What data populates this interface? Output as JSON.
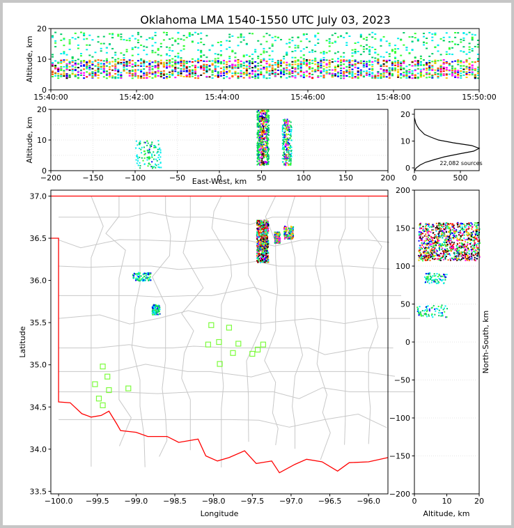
{
  "title": "Oklahoma LMA 1540-1550 UTC July 03, 2023",
  "colors": {
    "frame": "#c6c6c6",
    "state_border": "#ff0000",
    "county_lines": "#c8c8c8",
    "stations": "#7cfc3c",
    "density_scale": [
      "#ffffff",
      "#ccffff",
      "#00eeee",
      "#00cc66",
      "#33ff33",
      "#0000ff",
      "#ff00ff",
      "#ffcc00",
      "#ff6600",
      "#ff0000",
      "#660000",
      "#000000"
    ]
  },
  "panels": {
    "time_height": {
      "ylabel": "Altitude, km",
      "ylim": [
        0,
        20
      ],
      "yticks": [
        "0",
        "10",
        "20"
      ],
      "xticks": [
        "15:40:00",
        "15:42:00",
        "15:44:00",
        "15:46:00",
        "15:48:00",
        "15:50:00"
      ]
    },
    "ew_height": {
      "ylabel": "Altitude, km",
      "xlabel": "East-West, km",
      "xlim": [
        -200,
        200
      ],
      "ylim": [
        0,
        20
      ],
      "xticks": [
        "−200",
        "−150",
        "−100",
        "−50",
        "0",
        "50",
        "100",
        "150",
        "200"
      ],
      "yticks": [
        "0",
        "10",
        "20"
      ]
    },
    "histogram": {
      "xticks": [
        "0",
        "500"
      ],
      "yticks": [
        "0",
        "10",
        "20"
      ],
      "sources_label": "22,082 sources"
    },
    "plan_view": {
      "xlabel": "Longitude",
      "ylabel": "Latitude",
      "xlim": [
        -100.1,
        -95.75
      ],
      "ylim": [
        33.47,
        37.07
      ],
      "xticks": [
        "−100.0",
        "−99.5",
        "−99.0",
        "−98.5",
        "−98.0",
        "−97.5",
        "−97.0",
        "−96.5",
        "−96.0"
      ],
      "yticks": [
        "33.5",
        "34.0",
        "34.5",
        "35.0",
        "35.5",
        "36.0",
        "36.5",
        "37.0"
      ]
    },
    "ns_height": {
      "xlabel": "Altitude, km",
      "ylabel": "North-South, km",
      "xlim": [
        0,
        20
      ],
      "ylim": [
        -200,
        200
      ],
      "xticks": [
        "0",
        "10",
        "20"
      ],
      "yticks": [
        "200",
        "150",
        "100",
        "50",
        "0",
        "−50",
        "−100",
        "−150",
        "−200"
      ]
    }
  },
  "chart_data": [
    {
      "type": "heatmap",
      "name": "time-height source density",
      "x_range": [
        "15:40:00",
        "15:50:00"
      ],
      "y_range_km": [
        0,
        20
      ],
      "dense_layer_km": [
        4,
        10
      ],
      "sparse_layer_km": [
        10,
        19
      ]
    },
    {
      "type": "heatmap",
      "name": "east-west vs altitude",
      "clusters": [
        {
          "x_km": [
            -100,
            -70
          ],
          "alt_km": [
            1,
            10
          ],
          "intensity": "low"
        },
        {
          "x_km": [
            44,
            58
          ],
          "alt_km": [
            2,
            20
          ],
          "intensity": "high"
        },
        {
          "x_km": [
            74,
            85
          ],
          "alt_km": [
            2,
            17
          ],
          "intensity": "medium"
        }
      ]
    },
    {
      "type": "line",
      "name": "altitude histogram",
      "x": [
        0,
        20,
        60,
        120,
        220,
        330,
        480,
        640,
        700,
        620,
        420,
        260,
        180,
        110,
        80,
        50,
        30,
        15,
        8,
        0
      ],
      "y": [
        0,
        1,
        2,
        3,
        4,
        5,
        6,
        7,
        8,
        9,
        10,
        11,
        12,
        13,
        14,
        15,
        16,
        17,
        18,
        19
      ],
      "total_sources": "22,082 sources"
    },
    {
      "type": "scatter",
      "name": "plan view",
      "source_clusters": [
        {
          "lon": [
            -97.45,
            -97.3
          ],
          "lat": [
            36.22,
            36.72
          ],
          "intensity": "high"
        },
        {
          "lon": [
            -97.22,
            -97.15
          ],
          "lat": [
            36.45,
            36.58
          ],
          "intensity": "medium"
        },
        {
          "lon": [
            -97.1,
            -96.98
          ],
          "lat": [
            36.5,
            36.65
          ],
          "intensity": "medium"
        },
        {
          "lon": [
            -99.05,
            -98.82
          ],
          "lat": [
            36.0,
            36.1
          ],
          "intensity": "low"
        },
        {
          "lon": [
            -98.8,
            -98.7
          ],
          "lat": [
            35.6,
            35.72
          ],
          "intensity": "low"
        }
      ],
      "stations": [
        {
          "lon": -98.03,
          "lat": 35.47
        },
        {
          "lon": -97.8,
          "lat": 35.44
        },
        {
          "lon": -98.07,
          "lat": 35.24
        },
        {
          "lon": -97.93,
          "lat": 35.27
        },
        {
          "lon": -97.68,
          "lat": 35.25
        },
        {
          "lon": -97.36,
          "lat": 35.24
        },
        {
          "lon": -97.75,
          "lat": 35.14
        },
        {
          "lon": -97.43,
          "lat": 35.18
        },
        {
          "lon": -97.5,
          "lat": 35.13
        },
        {
          "lon": -97.92,
          "lat": 35.01
        },
        {
          "lon": -99.43,
          "lat": 34.98
        },
        {
          "lon": -99.37,
          "lat": 34.86
        },
        {
          "lon": -99.53,
          "lat": 34.77
        },
        {
          "lon": -99.35,
          "lat": 34.7
        },
        {
          "lon": -99.1,
          "lat": 34.72
        },
        {
          "lon": -99.48,
          "lat": 34.6
        },
        {
          "lon": -99.43,
          "lat": 34.52
        }
      ]
    },
    {
      "type": "heatmap",
      "name": "altitude vs north-south",
      "clusters": [
        {
          "alt_km": [
            1,
            20
          ],
          "ns_km": [
            108,
            158
          ],
          "intensity": "high"
        },
        {
          "alt_km": [
            3,
            10
          ],
          "ns_km": [
            78,
            92
          ],
          "intensity": "low"
        },
        {
          "alt_km": [
            0.5,
            10
          ],
          "ns_km": [
            33,
            50
          ],
          "intensity": "low"
        }
      ]
    }
  ]
}
